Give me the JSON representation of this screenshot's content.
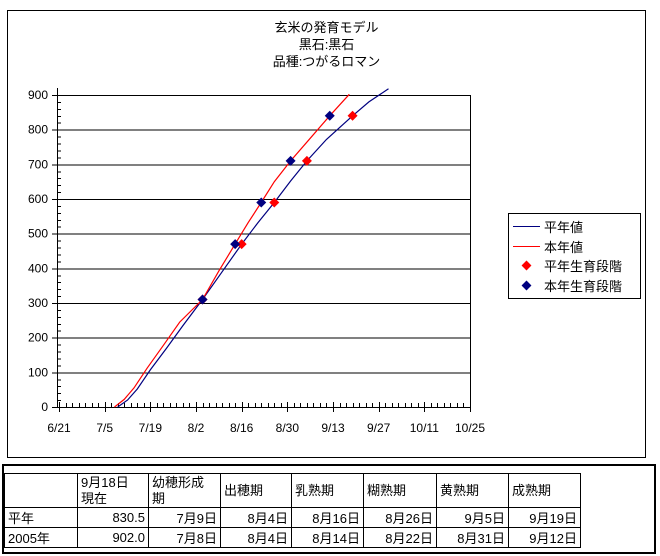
{
  "chart_data": {
    "type": "line",
    "title_lines": [
      "玄米の発育モデル",
      "黒石:黒石",
      "品種:つがるロマン"
    ],
    "x_axis": {
      "start_date": "6/21",
      "end_date": "10/25",
      "tick_labels": [
        "6/21",
        "7/5",
        "7/19",
        "8/2",
        "8/16",
        "8/30",
        "9/13",
        "9/27",
        "10/11",
        "10/25"
      ],
      "major_interval_days": 14,
      "minor_interval_days": 2
    },
    "y_axis": {
      "min": 0,
      "max": 900,
      "major_step": 100,
      "minor_step": 20
    },
    "grid": "horizontal",
    "legend_position": "right",
    "series": [
      {
        "name": "平年値",
        "type": "line",
        "color": "#000080",
        "points": [
          [
            "7/9",
            0
          ],
          [
            "7/12",
            20
          ],
          [
            "7/15",
            52
          ],
          [
            "7/19",
            107
          ],
          [
            "7/24",
            170
          ],
          [
            "7/29",
            235
          ],
          [
            "8/4",
            310
          ],
          [
            "8/10",
            390
          ],
          [
            "8/16",
            470
          ],
          [
            "8/21",
            532
          ],
          [
            "8/26",
            590
          ],
          [
            "8/31",
            652
          ],
          [
            "9/5",
            710
          ],
          [
            "9/11",
            772
          ],
          [
            "9/19",
            840
          ],
          [
            "9/24",
            880
          ],
          [
            "9/30",
            918
          ]
        ]
      },
      {
        "name": "本年値",
        "type": "line",
        "color": "#FF0000",
        "points": [
          [
            "7/8",
            0
          ],
          [
            "7/11",
            22
          ],
          [
            "7/14",
            55
          ],
          [
            "7/18",
            112
          ],
          [
            "7/23",
            178
          ],
          [
            "7/28",
            245
          ],
          [
            "8/4",
            310
          ],
          [
            "8/9",
            392
          ],
          [
            "8/14",
            470
          ],
          [
            "8/18",
            532
          ],
          [
            "8/22",
            590
          ],
          [
            "8/26",
            650
          ],
          [
            "8/31",
            710
          ],
          [
            "9/6",
            775
          ],
          [
            "9/12",
            840
          ],
          [
            "9/18",
            902
          ]
        ]
      },
      {
        "name": "平年生育段階",
        "type": "scatter",
        "marker": "diamond",
        "color": "#FF0000",
        "points": [
          [
            "8/4",
            310
          ],
          [
            "8/16",
            470
          ],
          [
            "8/26",
            590
          ],
          [
            "9/5",
            710
          ],
          [
            "9/19",
            840
          ]
        ]
      },
      {
        "name": "本年生育段階",
        "type": "scatter",
        "marker": "diamond",
        "color": "#000080",
        "points": [
          [
            "8/4",
            310
          ],
          [
            "8/14",
            470
          ],
          [
            "8/22",
            590
          ],
          [
            "8/31",
            710
          ],
          [
            "9/12",
            840
          ]
        ]
      }
    ]
  },
  "table": {
    "columns": [
      "",
      "9月18日\n現在",
      "幼穂形成\n期",
      "出穂期",
      "乳熟期",
      "糊熟期",
      "黄熟期",
      "成熟期"
    ],
    "rows": [
      [
        "平年",
        "830.5",
        "7月9日",
        "8月4日",
        "8月16日",
        "8月26日",
        "9月5日",
        "9月19日"
      ],
      [
        "2005年",
        "902.0",
        "7月8日",
        "8月4日",
        "8月14日",
        "8月22日",
        "8月31日",
        "9月12日"
      ]
    ]
  }
}
